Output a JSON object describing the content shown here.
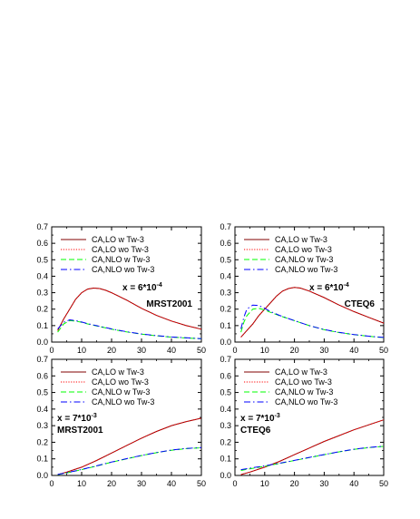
{
  "legend_labels": [
    "CA,LO w Tw-3",
    "CA,LO wo Tw-3",
    "CA,NLO w Tw-3",
    "CA,NLO wo Tw-3"
  ],
  "series_colors": [
    "#800000",
    "#ff0000",
    "#00ff00",
    "#0000ff"
  ],
  "chart_data": [
    {
      "type": "line",
      "panel": "top-left",
      "pdf_label": "MRST2001",
      "x_label_base": "x = 6*10",
      "x_label_exp": "-4",
      "xlim": [
        0,
        50
      ],
      "ylim": [
        0,
        0.7
      ],
      "xticks": [
        0,
        10,
        20,
        30,
        40,
        50
      ],
      "yticks": [
        0.0,
        0.1,
        0.2,
        0.3,
        0.4,
        0.5,
        0.6,
        0.7
      ],
      "legend": "top-left",
      "series": [
        {
          "name": "CA,LO w Tw-3",
          "x": [
            2,
            4,
            6,
            8,
            10,
            12,
            14,
            16,
            18,
            20,
            25,
            30,
            35,
            40,
            45,
            50
          ],
          "y": [
            0.07,
            0.14,
            0.2,
            0.26,
            0.3,
            0.322,
            0.328,
            0.325,
            0.315,
            0.3,
            0.255,
            0.205,
            0.162,
            0.128,
            0.1,
            0.078
          ]
        },
        {
          "name": "CA,LO wo Tw-3",
          "x": [
            2,
            4,
            6,
            8,
            10,
            12,
            14,
            16,
            18,
            20,
            25,
            30,
            35,
            40,
            45,
            50
          ],
          "y": [
            0.07,
            0.14,
            0.2,
            0.26,
            0.3,
            0.322,
            0.328,
            0.325,
            0.315,
            0.3,
            0.255,
            0.205,
            0.162,
            0.128,
            0.1,
            0.078
          ]
        },
        {
          "name": "CA,NLO w Tw-3",
          "x": [
            2,
            4,
            6,
            8,
            10,
            12,
            15,
            20,
            25,
            30,
            35,
            40,
            45,
            50
          ],
          "y": [
            0.06,
            0.11,
            0.13,
            0.128,
            0.12,
            0.11,
            0.098,
            0.078,
            0.062,
            0.048,
            0.038,
            0.03,
            0.025,
            0.02
          ]
        },
        {
          "name": "CA,NLO wo Tw-3",
          "x": [
            2,
            4,
            6,
            8,
            10,
            12,
            15,
            20,
            25,
            30,
            35,
            40,
            45,
            50
          ],
          "y": [
            0.08,
            0.12,
            0.135,
            0.13,
            0.122,
            0.112,
            0.1,
            0.08,
            0.063,
            0.049,
            0.039,
            0.031,
            0.026,
            0.021
          ]
        }
      ]
    },
    {
      "type": "line",
      "panel": "top-right",
      "pdf_label": "CTEQ6",
      "x_label_base": "x = 6*10",
      "x_label_exp": "-4",
      "xlim": [
        0,
        50
      ],
      "ylim": [
        0,
        0.7
      ],
      "xticks": [
        0,
        10,
        20,
        30,
        40,
        50
      ],
      "yticks": [
        0.0,
        0.1,
        0.2,
        0.3,
        0.4,
        0.5,
        0.6,
        0.7
      ],
      "legend": "top-left",
      "series": [
        {
          "name": "CA,LO w Tw-3",
          "x": [
            2,
            4,
            6,
            8,
            10,
            12,
            14,
            16,
            18,
            20,
            22,
            25,
            30,
            35,
            40,
            45,
            50
          ],
          "y": [
            0.03,
            0.07,
            0.11,
            0.16,
            0.2,
            0.24,
            0.28,
            0.31,
            0.325,
            0.332,
            0.328,
            0.31,
            0.27,
            0.225,
            0.185,
            0.15,
            0.115
          ]
        },
        {
          "name": "CA,LO wo Tw-3",
          "x": [
            2,
            4,
            6,
            8,
            10,
            12,
            14,
            16,
            18,
            20,
            22,
            25,
            30,
            35,
            40,
            45,
            50
          ],
          "y": [
            0.03,
            0.07,
            0.11,
            0.16,
            0.2,
            0.24,
            0.28,
            0.31,
            0.325,
            0.332,
            0.328,
            0.31,
            0.27,
            0.225,
            0.185,
            0.15,
            0.115
          ]
        },
        {
          "name": "CA,NLO w Tw-3",
          "x": [
            2,
            3,
            4,
            6,
            8,
            10,
            12,
            15,
            20,
            25,
            30,
            35,
            40,
            45,
            50
          ],
          "y": [
            0.06,
            0.12,
            0.16,
            0.2,
            0.205,
            0.195,
            0.18,
            0.16,
            0.13,
            0.1,
            0.075,
            0.058,
            0.045,
            0.035,
            0.027
          ]
        },
        {
          "name": "CA,NLO wo Tw-3",
          "x": [
            2,
            3,
            4,
            6,
            8,
            10,
            12,
            15,
            20,
            25,
            30,
            35,
            40,
            45,
            50
          ],
          "y": [
            0.08,
            0.15,
            0.2,
            0.225,
            0.222,
            0.205,
            0.185,
            0.162,
            0.13,
            0.1,
            0.076,
            0.059,
            0.046,
            0.036,
            0.028
          ]
        }
      ]
    },
    {
      "type": "line",
      "panel": "bottom-left",
      "pdf_label": "MRST2001",
      "x_label_base": "x = 7*10",
      "x_label_exp": "-3",
      "xlim": [
        0,
        50
      ],
      "ylim": [
        0,
        0.7
      ],
      "xticks": [
        0,
        10,
        20,
        30,
        40,
        50
      ],
      "yticks": [
        0.0,
        0.1,
        0.2,
        0.3,
        0.4,
        0.5,
        0.6,
        0.7
      ],
      "legend": "top-left",
      "series": [
        {
          "name": "CA,LO w Tw-3",
          "x": [
            2,
            5,
            10,
            15,
            20,
            25,
            30,
            35,
            40,
            45,
            50
          ],
          "y": [
            0.005,
            0.02,
            0.05,
            0.09,
            0.135,
            0.18,
            0.225,
            0.265,
            0.3,
            0.325,
            0.345
          ]
        },
        {
          "name": "CA,LO wo Tw-3",
          "x": [
            2,
            5,
            10,
            15,
            20,
            25,
            30,
            35,
            40,
            45,
            50
          ],
          "y": [
            0.005,
            0.02,
            0.05,
            0.09,
            0.135,
            0.18,
            0.225,
            0.265,
            0.3,
            0.325,
            0.345
          ]
        },
        {
          "name": "CA,NLO w Tw-3",
          "x": [
            2,
            5,
            10,
            15,
            20,
            25,
            30,
            35,
            40,
            45,
            50
          ],
          "y": [
            0.005,
            0.015,
            0.035,
            0.057,
            0.08,
            0.1,
            0.12,
            0.137,
            0.152,
            0.162,
            0.167
          ]
        },
        {
          "name": "CA,NLO wo Tw-3",
          "x": [
            2,
            5,
            10,
            15,
            20,
            25,
            30,
            35,
            40,
            45,
            50
          ],
          "y": [
            0.006,
            0.016,
            0.036,
            0.058,
            0.081,
            0.101,
            0.121,
            0.138,
            0.153,
            0.163,
            0.168
          ]
        }
      ]
    },
    {
      "type": "line",
      "panel": "bottom-right",
      "pdf_label": "CTEQ6",
      "x_label_base": "x = 7*10",
      "x_label_exp": "-3",
      "xlim": [
        0,
        50
      ],
      "ylim": [
        0,
        0.7
      ],
      "xticks": [
        0,
        10,
        20,
        30,
        40,
        50
      ],
      "yticks": [
        0.0,
        0.1,
        0.2,
        0.3,
        0.4,
        0.5,
        0.6,
        0.7
      ],
      "legend": "top-left",
      "series": [
        {
          "name": "CA,LO w Tw-3",
          "x": [
            2,
            5,
            10,
            15,
            20,
            25,
            30,
            35,
            40,
            45,
            50
          ],
          "y": [
            0.005,
            0.02,
            0.05,
            0.085,
            0.125,
            0.165,
            0.205,
            0.24,
            0.275,
            0.305,
            0.335
          ]
        },
        {
          "name": "CA,LO wo Tw-3",
          "x": [
            2,
            5,
            10,
            15,
            20,
            25,
            30,
            35,
            40,
            45,
            50
          ],
          "y": [
            0.005,
            0.02,
            0.05,
            0.085,
            0.125,
            0.165,
            0.205,
            0.24,
            0.275,
            0.305,
            0.335
          ]
        },
        {
          "name": "CA,NLO w Tw-3",
          "x": [
            2,
            5,
            10,
            15,
            20,
            25,
            30,
            35,
            40,
            45,
            50
          ],
          "y": [
            0.03,
            0.04,
            0.055,
            0.072,
            0.09,
            0.108,
            0.125,
            0.142,
            0.157,
            0.168,
            0.175
          ]
        },
        {
          "name": "CA,NLO wo Tw-3",
          "x": [
            2,
            5,
            10,
            15,
            20,
            25,
            30,
            35,
            40,
            45,
            50
          ],
          "y": [
            0.035,
            0.044,
            0.058,
            0.074,
            0.091,
            0.109,
            0.126,
            0.143,
            0.158,
            0.169,
            0.176
          ]
        }
      ]
    }
  ]
}
